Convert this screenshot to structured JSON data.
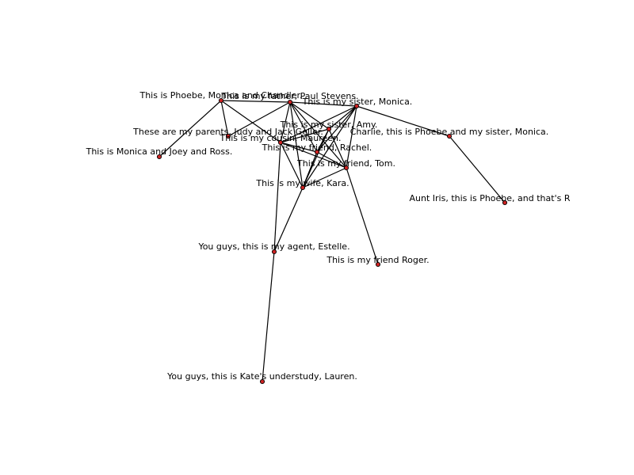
{
  "graph": {
    "node_color": "#cc2222",
    "edge_color": "#000000",
    "nodes": [
      {
        "id": "phoebe_monica_chandler",
        "label": "This is Phoebe, Monica and Chandler."
      },
      {
        "id": "father_paul",
        "label": "This is my father, Paul Stevens."
      },
      {
        "id": "sister_monica",
        "label": "This is my sister, Monica."
      },
      {
        "id": "parents_judy_jack",
        "label": "These are my parents, Judy and Jack Geller."
      },
      {
        "id": "monica_joey_ross",
        "label": "This is Monica and Joey and Ross."
      },
      {
        "id": "cousin_maureen",
        "label": "This is my cousin, Maureen."
      },
      {
        "id": "sister_amy",
        "label": "This is my sister, Amy."
      },
      {
        "id": "friend_rachel",
        "label": "This is my friend, Rachel."
      },
      {
        "id": "friend_tom",
        "label": "This is my friend, Tom."
      },
      {
        "id": "wife_kara",
        "label": "This is my wife, Kara."
      },
      {
        "id": "charlie_phoebe",
        "label": "Charlie, this is Phoebe and my sister, Monica."
      },
      {
        "id": "aunt_iris",
        "label": "Aunt Iris, this is Phoebe, and that's R"
      },
      {
        "id": "agent_estelle",
        "label": "You guys, this is my agent, Estelle."
      },
      {
        "id": "friend_roger",
        "label": "This is my friend Roger."
      },
      {
        "id": "understudy_lauren",
        "label": "You guys, this is Kate's understudy, Lauren."
      }
    ],
    "edges": [
      [
        "phoebe_monica_chandler",
        "father_paul"
      ],
      [
        "phoebe_monica_chandler",
        "monica_joey_ross"
      ],
      [
        "phoebe_monica_chandler",
        "parents_judy_jack"
      ],
      [
        "phoebe_monica_chandler",
        "cousin_maureen"
      ],
      [
        "father_paul",
        "sister_monica"
      ],
      [
        "father_paul",
        "parents_judy_jack"
      ],
      [
        "father_paul",
        "cousin_maureen"
      ],
      [
        "father_paul",
        "sister_amy"
      ],
      [
        "father_paul",
        "friend_rachel"
      ],
      [
        "father_paul",
        "friend_tom"
      ],
      [
        "father_paul",
        "wife_kara"
      ],
      [
        "sister_monica",
        "cousin_maureen"
      ],
      [
        "sister_monica",
        "sister_amy"
      ],
      [
        "sister_monica",
        "friend_rachel"
      ],
      [
        "sister_monica",
        "friend_tom"
      ],
      [
        "sister_monica",
        "wife_kara"
      ],
      [
        "sister_monica",
        "charlie_phoebe"
      ],
      [
        "charlie_phoebe",
        "aunt_iris"
      ],
      [
        "cousin_maureen",
        "sister_amy"
      ],
      [
        "cousin_maureen",
        "friend_rachel"
      ],
      [
        "cousin_maureen",
        "friend_tom"
      ],
      [
        "cousin_maureen",
        "wife_kara"
      ],
      [
        "cousin_maureen",
        "agent_estelle"
      ],
      [
        "sister_amy",
        "friend_rachel"
      ],
      [
        "sister_amy",
        "friend_tom"
      ],
      [
        "sister_amy",
        "wife_kara"
      ],
      [
        "friend_rachel",
        "friend_tom"
      ],
      [
        "friend_rachel",
        "wife_kara"
      ],
      [
        "friend_tom",
        "wife_kara"
      ],
      [
        "friend_tom",
        "friend_roger"
      ],
      [
        "wife_kara",
        "agent_estelle"
      ],
      [
        "agent_estelle",
        "understudy_lauren"
      ]
    ]
  }
}
